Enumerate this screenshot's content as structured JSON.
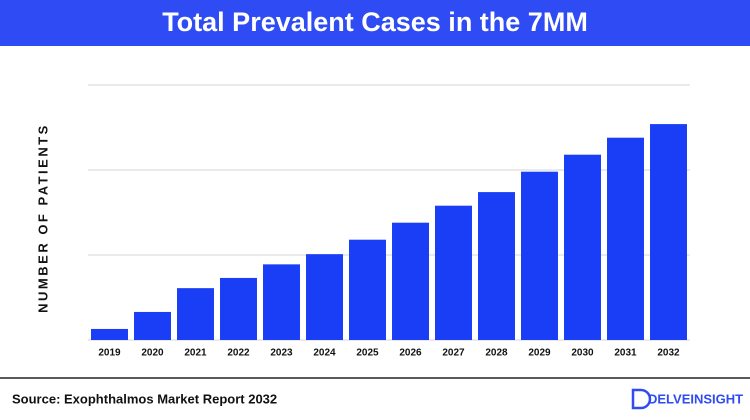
{
  "chart_data": {
    "type": "bar",
    "title": "Total Prevalent Cases in the 7MM",
    "y_label": "NUMBER OF PATIENTS",
    "categories": [
      "2019",
      "2020",
      "2021",
      "2022",
      "2023",
      "2024",
      "2025",
      "2026",
      "2027",
      "2028",
      "2029",
      "2030",
      "2031",
      "2032"
    ],
    "values": [
      0.13,
      0.33,
      0.61,
      0.73,
      0.89,
      1.01,
      1.18,
      1.38,
      1.58,
      1.74,
      1.98,
      2.18,
      2.38,
      2.54
    ],
    "color": "#1a3ef5",
    "ylim": [
      0,
      3
    ],
    "yticks": [
      0,
      1,
      2,
      3
    ],
    "grid": true,
    "tick_labels": false
  },
  "footer": {
    "source": "Source: Exophthalmos Market Report 2032",
    "logo": "DELVEINSIGHT"
  }
}
